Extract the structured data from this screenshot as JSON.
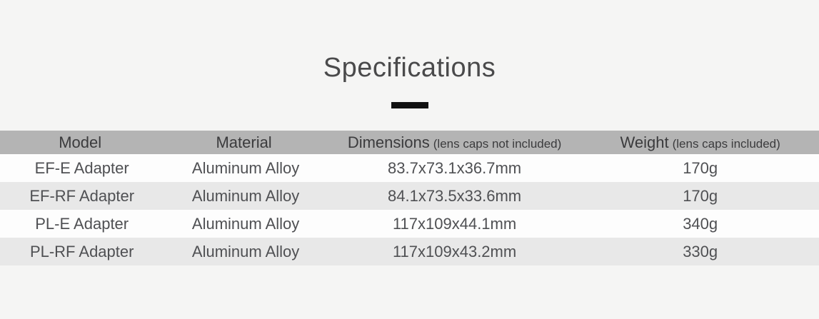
{
  "section": {
    "title": "Specifications"
  },
  "colors": {
    "page_bg": "#f5f5f4",
    "header_bg": "#b4b4b4",
    "row_bg": "#fdfdfd",
    "row_alt_bg": "#e8e8e8",
    "title_color": "#4a4a4b",
    "header_text": "#3b3b3d",
    "cell_text": "#4f5053",
    "dash_color": "#111111"
  },
  "table": {
    "columns": [
      {
        "label": "Model",
        "note": ""
      },
      {
        "label": "Material",
        "note": ""
      },
      {
        "label": "Dimensions",
        "note": "(lens caps not included)"
      },
      {
        "label": "Weight",
        "note": "(lens caps included)"
      }
    ],
    "row_keys": [
      "model",
      "material",
      "dimensions",
      "weight"
    ],
    "rows": [
      {
        "model": "EF-E Adapter",
        "material": "Aluminum Alloy",
        "dimensions": "83.7x73.1x36.7mm",
        "weight": "170g"
      },
      {
        "model": "EF-RF Adapter",
        "material": "Aluminum Alloy",
        "dimensions": "84.1x73.5x33.6mm",
        "weight": "170g"
      },
      {
        "model": "PL-E Adapter",
        "material": "Aluminum Alloy",
        "dimensions": "117x109x44.1mm",
        "weight": "340g"
      },
      {
        "model": "PL-RF Adapter",
        "material": "Aluminum Alloy",
        "dimensions": "117x109x43.2mm",
        "weight": "330g"
      }
    ]
  }
}
